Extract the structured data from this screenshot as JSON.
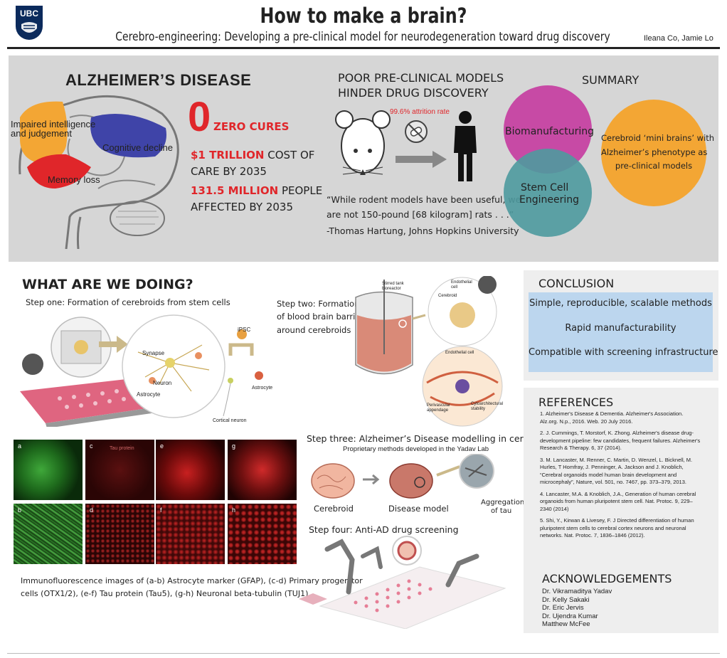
{
  "header": {
    "logo_text": "UBC",
    "title": "How to make a brain?",
    "subtitle": "Cerebro-engineering: Developing a pre-clinical model for neurodegeneration toward drug discovery",
    "authors": "Ileana Co, Jamie Lo"
  },
  "alz": {
    "heading": "ALZHEIMER’S DISEASE",
    "labels": {
      "intel": "Impaired intelligence and judgement",
      "cognitive": "Cognitive decline",
      "memory": "Memory loss"
    },
    "zero": "0",
    "zero_text": "ZERO CURES",
    "trillion_value": "$1 TRILLION",
    "trillion_text": " COST OF",
    "trillion_text2": "CARE BY 2035",
    "million_value": "131.5 MILLION",
    "million_text": " PEOPLE",
    "million_text2": "AFFECTED BY 2035"
  },
  "models": {
    "heading1": "POOR PRE-CLINICAL MODELS",
    "heading2": "HINDER DRUG DISCOVERY",
    "attrition": "99.6% attrition rate",
    "quote1": "“While rodent models have been useful, we",
    "quote2": "are not 150-pound [68 kilogram] rats . . .”",
    "quote3": "-Thomas Hartung, Johns Hopkins University"
  },
  "summary": {
    "heading": "SUMMARY",
    "bio": "Biomanufacturing",
    "stem1": "Stem Cell",
    "stem2": "Engineering",
    "result1": "Cerebroid ‘mini brains’ with",
    "result2": "Alzheimer’s phenotype as",
    "result3": "pre-clinical models"
  },
  "doing": {
    "heading": "WHAT ARE WE DOING?",
    "step1": "Step one: Formation of cerebroids from stem cells",
    "step2a": "Step two: Formation",
    "step2b": "of blood brain barrier",
    "step2c": "around cerebroids",
    "step3": "Step three: Alzheimer’s Disease modelling in cerebroids",
    "step3_sub": "Proprietary methods developed in the Yadav Lab",
    "step4": "Step four: Anti-AD drug screening",
    "labels": {
      "synapse": "Synapse",
      "neuron": "Neuron",
      "astrocyte": "Astrocyte",
      "ipsc": "iPSC",
      "astrocyte2": "Astrocyte",
      "cortical": "Cortical neuron",
      "bioreactor": "Stirred tank bioreactor",
      "endo1": "Endothelial cell",
      "cerebroid_in": "Cerebroid",
      "endo2": "Endothelial cell",
      "perivascular": "Perivascular appendage",
      "cyto": "Cytoarchitectural stability",
      "cerebroid": "Cerebroid",
      "disease": "Disease model",
      "tau1": "Aggregation",
      "tau2": "of tau"
    },
    "micro_letters": [
      "a",
      "c",
      "e",
      "g",
      "b",
      "d",
      "f",
      "h"
    ],
    "micro_inset": "Tau protein",
    "caption1": "Immunofluorescence images of (a-b) Astrocyte marker (GFAP), (c-d) Primary progenitor",
    "caption2": "cells (OTX1/2), (e-f) Tau protein (Tau5), (g-h) Neuronal beta-tubulin (TUJ1)"
  },
  "conclusion": {
    "heading": "CONCLUSION",
    "items": [
      "Simple, reproducible, scalable methods",
      "Rapid manufacturability",
      "Compatible with screening infrastructure"
    ]
  },
  "references": {
    "heading": "REFERENCES",
    "items": [
      "1.   Alzheimer's Disease & Dementia. Alzheimer's Association. Alz.org. N.p., 2016. Web. 20 July 2016.",
      "2.   J. Cummings, T. Morstorf, K. Zhong. Alzheimer's disease drug-development pipeline: few candidates, frequent failures. Alzheimer's Research & Therapy. 6, 37 (2014).",
      "3.   M. Lancaster, M. Renner, C. Martin, D. Wenzel, L. Bicknell, M. Hurles, T Homfray, J. Penninger, A. Jackson and J. Knoblich, “Cerebral organoids model human brain development and microcephaly”, Nature, vol. 501, no. 7467, pp. 373–379, 2013.",
      "4.   Lancaster, M.A. & Knoblich, J.A., Generation of human cerebral organoids from human pluripotent stem cell. Nat. Protoc. 9, 229–2340 (2014)",
      "5.   Shi, Y., Kirwan & Livesey, F. J Directed differentiation of human pluripotent stem cells to cerebral cortex neurons and neuronal networks. Nat. Protoc. 7, 1836–1846 (2012)."
    ]
  },
  "ack": {
    "heading": "ACKNOWLEDGEMENTS",
    "names": [
      "Dr. Vikramaditya Yadav",
      "Dr. Kelly Sakaki",
      "Dr. Eric Jervis",
      "Dr. Ujendra Kumar",
      "Matthew McFee"
    ]
  },
  "colors": {
    "red": "#e0262a",
    "magenta": "#c74aa5",
    "teal": "#4e9a9e",
    "orange": "#f3a634",
    "blue_box": "#bcd6ee",
    "grey_panel": "#d6d6d6"
  }
}
